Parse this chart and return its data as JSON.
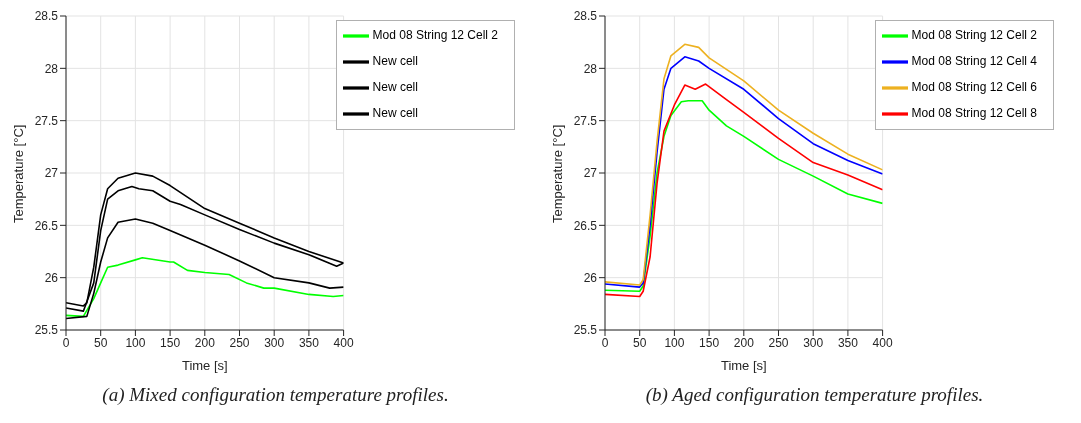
{
  "chart_data": [
    {
      "type": "line",
      "xlabel": "Time [s]",
      "ylabel": "Temperature [°C]",
      "xlim": [
        0,
        400
      ],
      "xticks": [
        0,
        50,
        100,
        150,
        200,
        250,
        300,
        350,
        400
      ],
      "ylim": [
        25.5,
        28.5
      ],
      "yticks": [
        25.5,
        26,
        26.5,
        27,
        27.5,
        28,
        28.5
      ],
      "grid": true,
      "legend": "top right",
      "marker": "none",
      "line_style": "solid",
      "annotations": [
        "(a) Mixed configuration temperature profiles."
      ],
      "series": [
        {
          "name": "Mod 08 String 12 Cell 2",
          "color": "#00ff00",
          "x": [
            0,
            25,
            40,
            50,
            60,
            75,
            100,
            110,
            150,
            155,
            175,
            200,
            235,
            260,
            285,
            300,
            350,
            385,
            400
          ],
          "values": [
            25.64,
            25.63,
            25.8,
            25.95,
            26.1,
            26.12,
            26.17,
            26.19,
            26.15,
            26.15,
            26.07,
            26.05,
            26.03,
            25.95,
            25.9,
            25.9,
            25.84,
            25.82,
            25.83
          ]
        },
        {
          "name": "New cell",
          "color": "#000000",
          "x": [
            0,
            25,
            30,
            40,
            50,
            60,
            75,
            100,
            125,
            150,
            175,
            200,
            250,
            300,
            350,
            400
          ],
          "values": [
            25.76,
            25.73,
            25.76,
            26.1,
            26.6,
            26.85,
            26.95,
            27.0,
            26.97,
            26.88,
            26.77,
            26.66,
            26.52,
            26.38,
            26.25,
            26.14
          ]
        },
        {
          "name": "New cell",
          "color": "#000000",
          "x": [
            0,
            25,
            40,
            50,
            60,
            75,
            95,
            105,
            125,
            150,
            165,
            200,
            250,
            300,
            350,
            390,
            400
          ],
          "values": [
            25.71,
            25.68,
            25.95,
            26.45,
            26.75,
            26.83,
            26.87,
            26.85,
            26.83,
            26.73,
            26.7,
            26.6,
            26.46,
            26.33,
            26.22,
            26.11,
            26.14
          ]
        },
        {
          "name": "New cell",
          "color": "#000000",
          "x": [
            0,
            30,
            40,
            50,
            60,
            75,
            100,
            125,
            150,
            200,
            250,
            300,
            350,
            380,
            400
          ],
          "values": [
            25.61,
            25.63,
            25.85,
            26.15,
            26.38,
            26.53,
            26.56,
            26.52,
            26.45,
            26.31,
            26.16,
            26.0,
            25.95,
            25.9,
            25.91
          ]
        }
      ]
    },
    {
      "type": "line",
      "xlabel": "Time [s]",
      "ylabel": "Temperature [°C]",
      "xlim": [
        0,
        400
      ],
      "xticks": [
        0,
        50,
        100,
        150,
        200,
        250,
        300,
        350,
        400
      ],
      "ylim": [
        25.5,
        28.5
      ],
      "yticks": [
        25.5,
        26,
        26.5,
        27,
        27.5,
        28,
        28.5
      ],
      "grid": true,
      "legend": "top right",
      "marker": "none",
      "line_style": "solid",
      "annotations": [
        "(b) Aged configuration temperature profiles."
      ],
      "series": [
        {
          "name": "Mod 08 String 12 Cell 2",
          "color": "#00ff00",
          "x": [
            0,
            50,
            55,
            65,
            75,
            85,
            95,
            110,
            120,
            140,
            150,
            175,
            200,
            250,
            300,
            350,
            400
          ],
          "values": [
            25.88,
            25.87,
            25.92,
            26.4,
            27.0,
            27.35,
            27.55,
            27.68,
            27.69,
            27.69,
            27.6,
            27.45,
            27.35,
            27.13,
            26.97,
            26.8,
            26.71
          ]
        },
        {
          "name": "Mod 08 String 12 Cell 4",
          "color": "#0000ff",
          "x": [
            0,
            50,
            55,
            65,
            75,
            85,
            95,
            115,
            135,
            150,
            200,
            250,
            300,
            350,
            400
          ],
          "values": [
            25.94,
            25.91,
            25.95,
            26.5,
            27.2,
            27.8,
            28.0,
            28.11,
            28.07,
            28.0,
            27.8,
            27.52,
            27.28,
            27.12,
            26.99
          ]
        },
        {
          "name": "Mod 08 String 12 Cell 6",
          "color": "#edb120",
          "x": [
            0,
            50,
            55,
            65,
            75,
            85,
            95,
            115,
            135,
            150,
            200,
            250,
            300,
            350,
            400
          ],
          "values": [
            25.96,
            25.93,
            25.98,
            26.6,
            27.3,
            27.9,
            28.12,
            28.23,
            28.2,
            28.1,
            27.88,
            27.6,
            27.38,
            27.18,
            27.03
          ]
        },
        {
          "name": "Mod 08 String 12 Cell 8",
          "color": "#ff0000",
          "x": [
            0,
            50,
            55,
            65,
            75,
            85,
            100,
            115,
            130,
            145,
            175,
            200,
            250,
            300,
            350,
            400
          ],
          "values": [
            25.84,
            25.82,
            25.87,
            26.2,
            26.9,
            27.4,
            27.65,
            27.84,
            27.8,
            27.85,
            27.7,
            27.58,
            27.33,
            27.1,
            26.98,
            26.84
          ]
        }
      ]
    }
  ]
}
